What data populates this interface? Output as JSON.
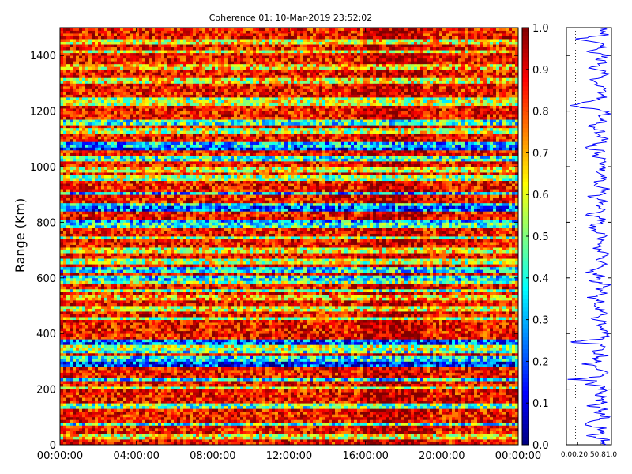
{
  "chart_data": [
    {
      "type": "heatmap",
      "title": "Coherence 01: 10-Mar-2019 23:52:02",
      "ylabel": "Range (Km)",
      "xlabel": "",
      "x_ticks": [
        "00:00:00",
        "04:00:00",
        "08:00:00",
        "12:00:00",
        "16:00:00",
        "20:00:00",
        "00:00:00"
      ],
      "y_ticks": [
        0,
        200,
        400,
        600,
        800,
        1000,
        1200,
        1400
      ],
      "ylim": [
        0,
        1500
      ],
      "x_range_hours": [
        0,
        24
      ],
      "colormap": "jet",
      "value_range": [
        0.0,
        1.0
      ],
      "low_coherence_bands_km": [
        30,
        75,
        140,
        205,
        235,
        290,
        310,
        335,
        350,
        370,
        455,
        490,
        530,
        555,
        585,
        600,
        630,
        660,
        700,
        745,
        790,
        805,
        850,
        865,
        905,
        960,
        990,
        1030,
        1065,
        1080,
        1130,
        1160,
        1230,
        1240,
        1310,
        1360,
        1415,
        1450
      ],
      "low_band_values": [
        0.55,
        0.35,
        0.4,
        0.5,
        0.3,
        0.1,
        0.3,
        0.35,
        0.5,
        0.15,
        0.5,
        0.55,
        0.6,
        0.4,
        0.45,
        0.3,
        0.3,
        0.5,
        0.55,
        0.45,
        0.35,
        0.25,
        0.15,
        0.3,
        0.25,
        0.45,
        0.55,
        0.35,
        0.1,
        0.25,
        0.5,
        0.35,
        0.5,
        0.45,
        0.55,
        0.6,
        0.55,
        0.55
      ],
      "background_value": 0.85
    },
    {
      "type": "bar",
      "title": "",
      "xlabel": "",
      "ylabel": "",
      "categories": [
        "0.0",
        "0.1",
        "0.2",
        "0.3",
        "0.4",
        "0.5",
        "0.6",
        "0.7",
        "0.8",
        "0.9",
        "1.0"
      ],
      "values": [
        0.0,
        0.1,
        0.2,
        0.3,
        0.4,
        0.5,
        0.6,
        0.7,
        0.8,
        0.9,
        1.0
      ],
      "orientation": "vertical",
      "ylim": [
        0,
        1
      ]
    },
    {
      "type": "line",
      "title": "",
      "xlabel": "",
      "ylabel": "",
      "x_ticks": [
        "0.0",
        "0.2",
        "0.5",
        "0.8",
        "1.0"
      ],
      "xlim": [
        0,
        1
      ],
      "ylim": [
        0,
        1500
      ],
      "reference_line_x": 0.2,
      "series": [
        {
          "color": "#0000ff",
          "y": [
            0,
            10,
            20,
            30,
            40,
            50,
            60,
            75,
            90,
            100,
            110,
            120,
            130,
            140,
            150,
            160,
            170,
            180,
            190,
            200,
            210,
            220,
            230,
            235,
            245,
            260,
            275,
            290,
            300,
            310,
            320,
            330,
            345,
            360,
            370,
            380,
            395,
            410,
            425,
            440,
            455,
            470,
            485,
            500,
            515,
            530,
            545,
            560,
            575,
            590,
            605,
            620,
            635,
            650,
            665,
            680,
            695,
            710,
            725,
            740,
            755,
            770,
            785,
            800,
            815,
            830,
            845,
            860,
            875,
            890,
            905,
            920,
            935,
            950,
            965,
            980,
            995,
            1010,
            1025,
            1040,
            1055,
            1070,
            1085,
            1100,
            1115,
            1130,
            1145,
            1160,
            1175,
            1190,
            1205,
            1220,
            1235,
            1250,
            1265,
            1280,
            1295,
            1310,
            1325,
            1340,
            1355,
            1370,
            1385,
            1400,
            1415,
            1430,
            1445,
            1460,
            1475,
            1490,
            1500
          ],
          "x": [
            0.82,
            0.75,
            0.9,
            0.45,
            0.7,
            0.85,
            0.78,
            0.35,
            0.72,
            0.88,
            0.8,
            0.68,
            0.9,
            0.5,
            0.82,
            0.75,
            0.88,
            0.7,
            0.85,
            0.78,
            0.9,
            0.4,
            0.75,
            0.05,
            0.8,
            0.85,
            0.7,
            0.45,
            0.82,
            0.6,
            0.88,
            0.55,
            0.78,
            0.85,
            0.05,
            0.75,
            0.9,
            0.82,
            0.7,
            0.85,
            0.6,
            0.88,
            0.78,
            0.62,
            0.85,
            0.55,
            0.8,
            0.7,
            0.88,
            0.6,
            0.82,
            0.5,
            0.75,
            0.85,
            0.7,
            0.9,
            0.8,
            0.65,
            0.85,
            0.78,
            0.88,
            0.6,
            0.55,
            0.82,
            0.75,
            0.45,
            0.9,
            0.7,
            0.85,
            0.5,
            0.8,
            0.88,
            0.65,
            0.75,
            0.85,
            0.6,
            0.9,
            0.7,
            0.82,
            0.55,
            0.85,
            0.4,
            0.78,
            0.88,
            0.65,
            0.8,
            0.5,
            0.85,
            0.7,
            0.9,
            0.75,
            0.02,
            0.6,
            0.85,
            0.78,
            0.9,
            0.7,
            0.55,
            0.82,
            0.88,
            0.6,
            0.8,
            0.75,
            0.9,
            0.55,
            0.85,
            0.7,
            0.2,
            0.88,
            0.8,
            0.85
          ]
        }
      ]
    }
  ]
}
